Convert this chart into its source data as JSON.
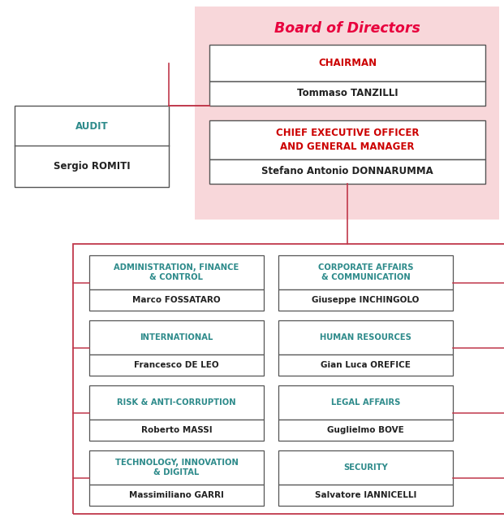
{
  "bg_color": "#ffffff",
  "title": "Board of Directors",
  "title_color": "#e8003d",
  "board_bg": "#f8d7da",
  "teal": "#2e8b8b",
  "red": "#cc0000",
  "dark": "#222222",
  "line_color_red": "#c0384b",
  "line_color_dark": "#555555",
  "departments": [
    {
      "title": "ADMINISTRATION, FINANCE\n& CONTROL",
      "name": "Marco FOSSATARO",
      "col": 0,
      "row": 0
    },
    {
      "title": "CORPORATE AFFAIRS\n& COMMUNICATION",
      "name": "Giuseppe INCHINGOLO",
      "col": 1,
      "row": 0
    },
    {
      "title": "INTERNATIONAL",
      "name": "Francesco DE LEO",
      "col": 0,
      "row": 1
    },
    {
      "title": "HUMAN RESOURCES",
      "name": "Gian Luca OREFICE",
      "col": 1,
      "row": 1
    },
    {
      "title": "RISK & ANTI-CORRUPTION",
      "name": "Roberto MASSI",
      "col": 0,
      "row": 2
    },
    {
      "title": "LEGAL AFFAIRS",
      "name": "Guglielmo BOVE",
      "col": 1,
      "row": 2
    },
    {
      "title": "TECHNOLOGY, INNOVATION\n& DIGITAL",
      "name": "Massimiliano GARRI",
      "col": 0,
      "row": 3
    },
    {
      "title": "SECURITY",
      "name": "Salvatore IANNICELLI",
      "col": 1,
      "row": 3
    }
  ]
}
